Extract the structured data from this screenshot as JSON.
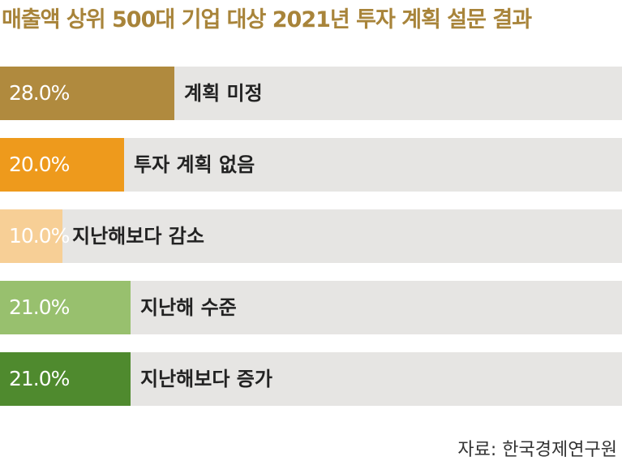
{
  "chart_data": {
    "type": "bar",
    "orientation": "horizontal",
    "title": "매출액 상위 500대 기업 대상 2021년 투자 계획 설문 결과",
    "categories": [
      "계획 미정",
      "투자 계획 없음",
      "지난해보다 감소",
      "지난해 수준",
      "지난해보다 증가"
    ],
    "values": [
      28.0,
      20.0,
      10.0,
      21.0,
      21.0
    ],
    "value_labels": [
      "28.0%",
      "20.0%",
      "10.0%",
      "21.0%",
      "21.0%"
    ],
    "colors": [
      "#b08a3e",
      "#ee9a1c",
      "#f7cf96",
      "#98c06e",
      "#4f8a2e"
    ],
    "track_color": "#e6e5e3",
    "xlim": [
      0,
      100
    ],
    "grid": false,
    "legend": "none"
  },
  "source": "자료: 한국경제연구원"
}
